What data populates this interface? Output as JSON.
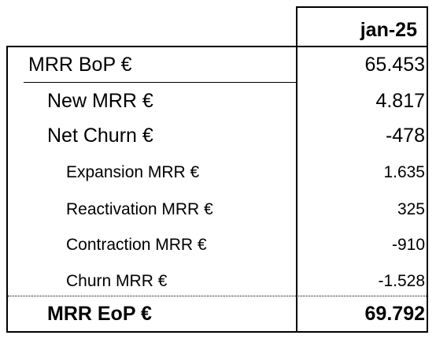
{
  "header": {
    "period": "jan-25"
  },
  "rows": [
    {
      "label": "MRR BoP €",
      "value": "65.453"
    },
    {
      "label": "New MRR €",
      "value": "4.817"
    },
    {
      "label": "Net Churn €",
      "value": "-478"
    },
    {
      "label": "Expansion MRR €",
      "value": "1.635"
    },
    {
      "label": "Reactivation MRR €",
      "value": "325"
    },
    {
      "label": "Contraction MRR €",
      "value": "-910"
    },
    {
      "label": "Churn MRR €",
      "value": "-1.528"
    },
    {
      "label": "MRR EoP €",
      "value": "69.792"
    }
  ]
}
